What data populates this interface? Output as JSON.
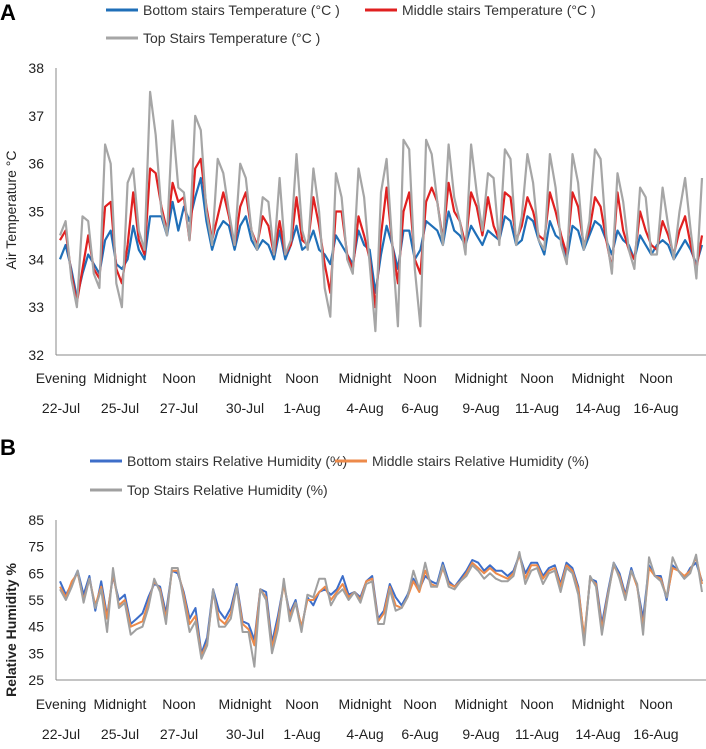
{
  "chart_data": [
    {
      "panel": "A",
      "type": "line",
      "ylabel": "Air Temperature °C",
      "ylim": [
        32,
        38
      ],
      "yticks": [
        32,
        33,
        34,
        35,
        36,
        37,
        38
      ],
      "time_of_day_labels": [
        "Evening",
        "Midnight",
        "Noon",
        "Midnight",
        "Noon",
        "Midnight",
        "Noon",
        "Midnight",
        "Noon",
        "Midnight",
        "Noon"
      ],
      "date_labels": [
        "22-Jul",
        "25-Jul",
        "27-Jul",
        "30-Jul",
        "1-Aug",
        "4-Aug",
        "6-Aug",
        "9-Aug",
        "11-Aug",
        "14-Aug",
        "16-Aug"
      ],
      "series": [
        {
          "name": "Bottom stairs Temperature  (°C )",
          "color": "#1f6fb8",
          "values": [
            34.0,
            34.3,
            33.8,
            33.2,
            33.7,
            34.1,
            33.9,
            33.7,
            34.4,
            34.6,
            33.9,
            33.8,
            34.0,
            34.7,
            34.2,
            34.0,
            34.9,
            34.9,
            34.9,
            34.5,
            35.2,
            34.6,
            35.1,
            34.8,
            35.3,
            35.7,
            34.8,
            34.2,
            34.6,
            34.8,
            34.7,
            34.2,
            34.7,
            34.9,
            34.4,
            34.2,
            34.4,
            34.3,
            34.0,
            34.6,
            34.0,
            34.3,
            34.7,
            34.2,
            34.3,
            34.6,
            34.2,
            34.1,
            33.9,
            34.5,
            34.3,
            34.1,
            33.9,
            34.6,
            34.3,
            34.2,
            33.3,
            34.1,
            34.7,
            34.3,
            33.8,
            34.6,
            34.6,
            34.0,
            34.2,
            34.8,
            34.7,
            34.6,
            34.3,
            35.0,
            34.6,
            34.5,
            34.3,
            34.7,
            34.5,
            34.3,
            34.6,
            34.5,
            34.4,
            34.9,
            34.8,
            34.3,
            34.4,
            34.9,
            34.8,
            34.4,
            34.1,
            34.8,
            34.5,
            34.4,
            34.0,
            34.7,
            34.6,
            34.2,
            34.5,
            34.8,
            34.7,
            34.4,
            34.1,
            34.6,
            34.4,
            34.3,
            34.0,
            34.5,
            34.3,
            34.1,
            34.3,
            34.4,
            34.3,
            34.0,
            34.2,
            34.4,
            34.2,
            33.9,
            34.3
          ]
        },
        {
          "name": "Middle stairs Temperature   (°C )",
          "color": "#e02020",
          "values": [
            34.4,
            34.6,
            33.7,
            33.1,
            33.8,
            34.5,
            33.8,
            33.6,
            35.1,
            35.2,
            33.8,
            33.5,
            34.3,
            35.4,
            34.4,
            34.1,
            35.9,
            35.8,
            35.1,
            34.6,
            35.6,
            35.2,
            35.3,
            34.4,
            35.9,
            36.1,
            35.1,
            34.4,
            34.9,
            35.4,
            34.9,
            34.3,
            35.1,
            35.4,
            34.6,
            34.3,
            34.9,
            34.7,
            34.1,
            34.8,
            34.1,
            34.3,
            35.3,
            34.4,
            34.3,
            35.3,
            34.7,
            33.9,
            33.3,
            35.0,
            35.0,
            34.1,
            33.8,
            34.9,
            34.5,
            34.0,
            33.0,
            34.5,
            35.5,
            34.3,
            33.5,
            35.0,
            35.4,
            34.0,
            33.7,
            35.2,
            35.5,
            35.2,
            34.4,
            35.6,
            35.0,
            34.8,
            34.3,
            35.4,
            35.1,
            34.5,
            35.3,
            34.7,
            34.4,
            35.4,
            35.3,
            34.4,
            34.7,
            35.3,
            35.0,
            34.5,
            34.4,
            35.4,
            35.0,
            34.5,
            34.1,
            35.4,
            35.1,
            34.3,
            34.6,
            35.3,
            35.1,
            34.4,
            33.8,
            35.4,
            34.6,
            34.2,
            34.0,
            35.0,
            34.6,
            34.3,
            34.2,
            34.8,
            34.5,
            34.1,
            34.6,
            34.9,
            34.3,
            33.8,
            34.5
          ]
        },
        {
          "name": "Top Stairs Temperature   (°C )",
          "color": "#a6a6a6",
          "values": [
            34.5,
            34.8,
            33.6,
            33.0,
            34.9,
            34.8,
            33.7,
            33.4,
            36.4,
            36.0,
            33.5,
            33.0,
            35.6,
            35.9,
            34.6,
            34.2,
            37.5,
            36.6,
            35.0,
            34.5,
            36.9,
            35.5,
            35.4,
            34.4,
            37.0,
            36.7,
            35.0,
            34.3,
            36.1,
            35.8,
            35.0,
            34.3,
            36.0,
            35.7,
            34.6,
            34.2,
            35.3,
            35.2,
            34.1,
            35.7,
            34.1,
            34.4,
            36.2,
            34.6,
            34.2,
            35.9,
            35.0,
            33.4,
            32.8,
            35.8,
            35.3,
            34.0,
            33.7,
            35.9,
            35.3,
            33.9,
            32.5,
            35.4,
            36.1,
            34.3,
            32.6,
            36.5,
            36.3,
            33.8,
            32.6,
            36.5,
            36.2,
            35.2,
            34.3,
            36.4,
            35.3,
            34.8,
            34.1,
            36.4,
            35.4,
            34.6,
            35.8,
            35.7,
            34.3,
            36.3,
            36.1,
            34.3,
            34.9,
            36.2,
            35.6,
            34.4,
            34.2,
            36.2,
            35.5,
            34.3,
            33.9,
            36.2,
            35.6,
            34.2,
            34.8,
            36.3,
            36.1,
            34.5,
            33.7,
            35.8,
            35.2,
            34.2,
            33.8,
            35.5,
            35.3,
            34.1,
            34.1,
            35.5,
            34.7,
            34.0,
            35.0,
            35.7,
            34.6,
            33.6,
            35.7
          ]
        }
      ]
    },
    {
      "panel": "B",
      "type": "line",
      "ylabel": "Relative Humidity %",
      "ylim": [
        25,
        85
      ],
      "yticks": [
        25,
        35,
        45,
        55,
        65,
        75,
        85
      ],
      "time_of_day_labels": [
        "Evening",
        "Midnight",
        "Noon",
        "Midnight",
        "Noon",
        "Midnight",
        "Noon",
        "Midnight",
        "Noon",
        "Midnight",
        "Noon"
      ],
      "date_labels": [
        "22-Jul",
        "25-Jul",
        "27-Jul",
        "30-Jul",
        "1-Aug",
        "4-Aug",
        "6-Aug",
        "9-Aug",
        "11-Aug",
        "14-Aug",
        "16-Aug"
      ],
      "series": [
        {
          "name": "Bottom stairs Relative Humidity (%)",
          "color": "#3d6ec9",
          "values": [
            62,
            57,
            61,
            66,
            57,
            64,
            51,
            62,
            49,
            64,
            55,
            57,
            46,
            48,
            50,
            56,
            61,
            60,
            50,
            66,
            65,
            58,
            48,
            52,
            35,
            41,
            59,
            51,
            48,
            52,
            61,
            47,
            46,
            40,
            59,
            58,
            39,
            49,
            61,
            50,
            55,
            44,
            56,
            53,
            58,
            59,
            57,
            59,
            64,
            57,
            58,
            56,
            62,
            64,
            48,
            51,
            61,
            56,
            53,
            57,
            63,
            59,
            64,
            62,
            61,
            69,
            62,
            60,
            63,
            66,
            70,
            69,
            66,
            68,
            66,
            66,
            64,
            66,
            72,
            65,
            69,
            69,
            64,
            67,
            68,
            61,
            69,
            67,
            60,
            40,
            63,
            62,
            46,
            58,
            69,
            65,
            57,
            67,
            60,
            48,
            68,
            64,
            64,
            55,
            68,
            66,
            63,
            67,
            69,
            62
          ]
        },
        {
          "name": "Middle stairs Relative Humidity (%)",
          "color": "#ed8a4a",
          "values": [
            60,
            56,
            62,
            65,
            55,
            63,
            53,
            60,
            48,
            65,
            53,
            55,
            45,
            46,
            47,
            54,
            62,
            59,
            48,
            66,
            66,
            57,
            46,
            49,
            34,
            39,
            58,
            48,
            46,
            50,
            60,
            46,
            44,
            38,
            59,
            56,
            37,
            47,
            61,
            49,
            54,
            45,
            55,
            55,
            58,
            60,
            55,
            58,
            61,
            56,
            58,
            55,
            62,
            63,
            47,
            50,
            60,
            53,
            52,
            56,
            62,
            58,
            66,
            61,
            60,
            67,
            61,
            60,
            62,
            65,
            69,
            67,
            65,
            67,
            65,
            64,
            63,
            65,
            72,
            63,
            68,
            68,
            63,
            66,
            67,
            60,
            68,
            66,
            59,
            41,
            63,
            61,
            44,
            57,
            68,
            64,
            56,
            66,
            60,
            45,
            67,
            64,
            63,
            56,
            67,
            66,
            64,
            66,
            71,
            61
          ]
        },
        {
          "name": "Top Stairs Relative Humidity (%)",
          "color": "#a0a0a0",
          "values": [
            59,
            55,
            60,
            66,
            54,
            63,
            52,
            59,
            43,
            67,
            52,
            54,
            42,
            44,
            45,
            52,
            63,
            58,
            46,
            67,
            67,
            55,
            43,
            47,
            33,
            38,
            59,
            45,
            45,
            48,
            60,
            43,
            43,
            30,
            59,
            55,
            35,
            44,
            63,
            47,
            54,
            43,
            57,
            56,
            63,
            63,
            53,
            57,
            59,
            55,
            58,
            54,
            61,
            62,
            46,
            46,
            59,
            51,
            52,
            56,
            66,
            59,
            69,
            60,
            60,
            68,
            60,
            59,
            62,
            64,
            68,
            66,
            63,
            65,
            63,
            62,
            62,
            64,
            73,
            61,
            66,
            67,
            61,
            65,
            66,
            58,
            67,
            65,
            57,
            38,
            64,
            60,
            42,
            56,
            69,
            63,
            55,
            66,
            61,
            42,
            71,
            64,
            62,
            56,
            71,
            66,
            63,
            65,
            72,
            58
          ]
        }
      ]
    }
  ]
}
